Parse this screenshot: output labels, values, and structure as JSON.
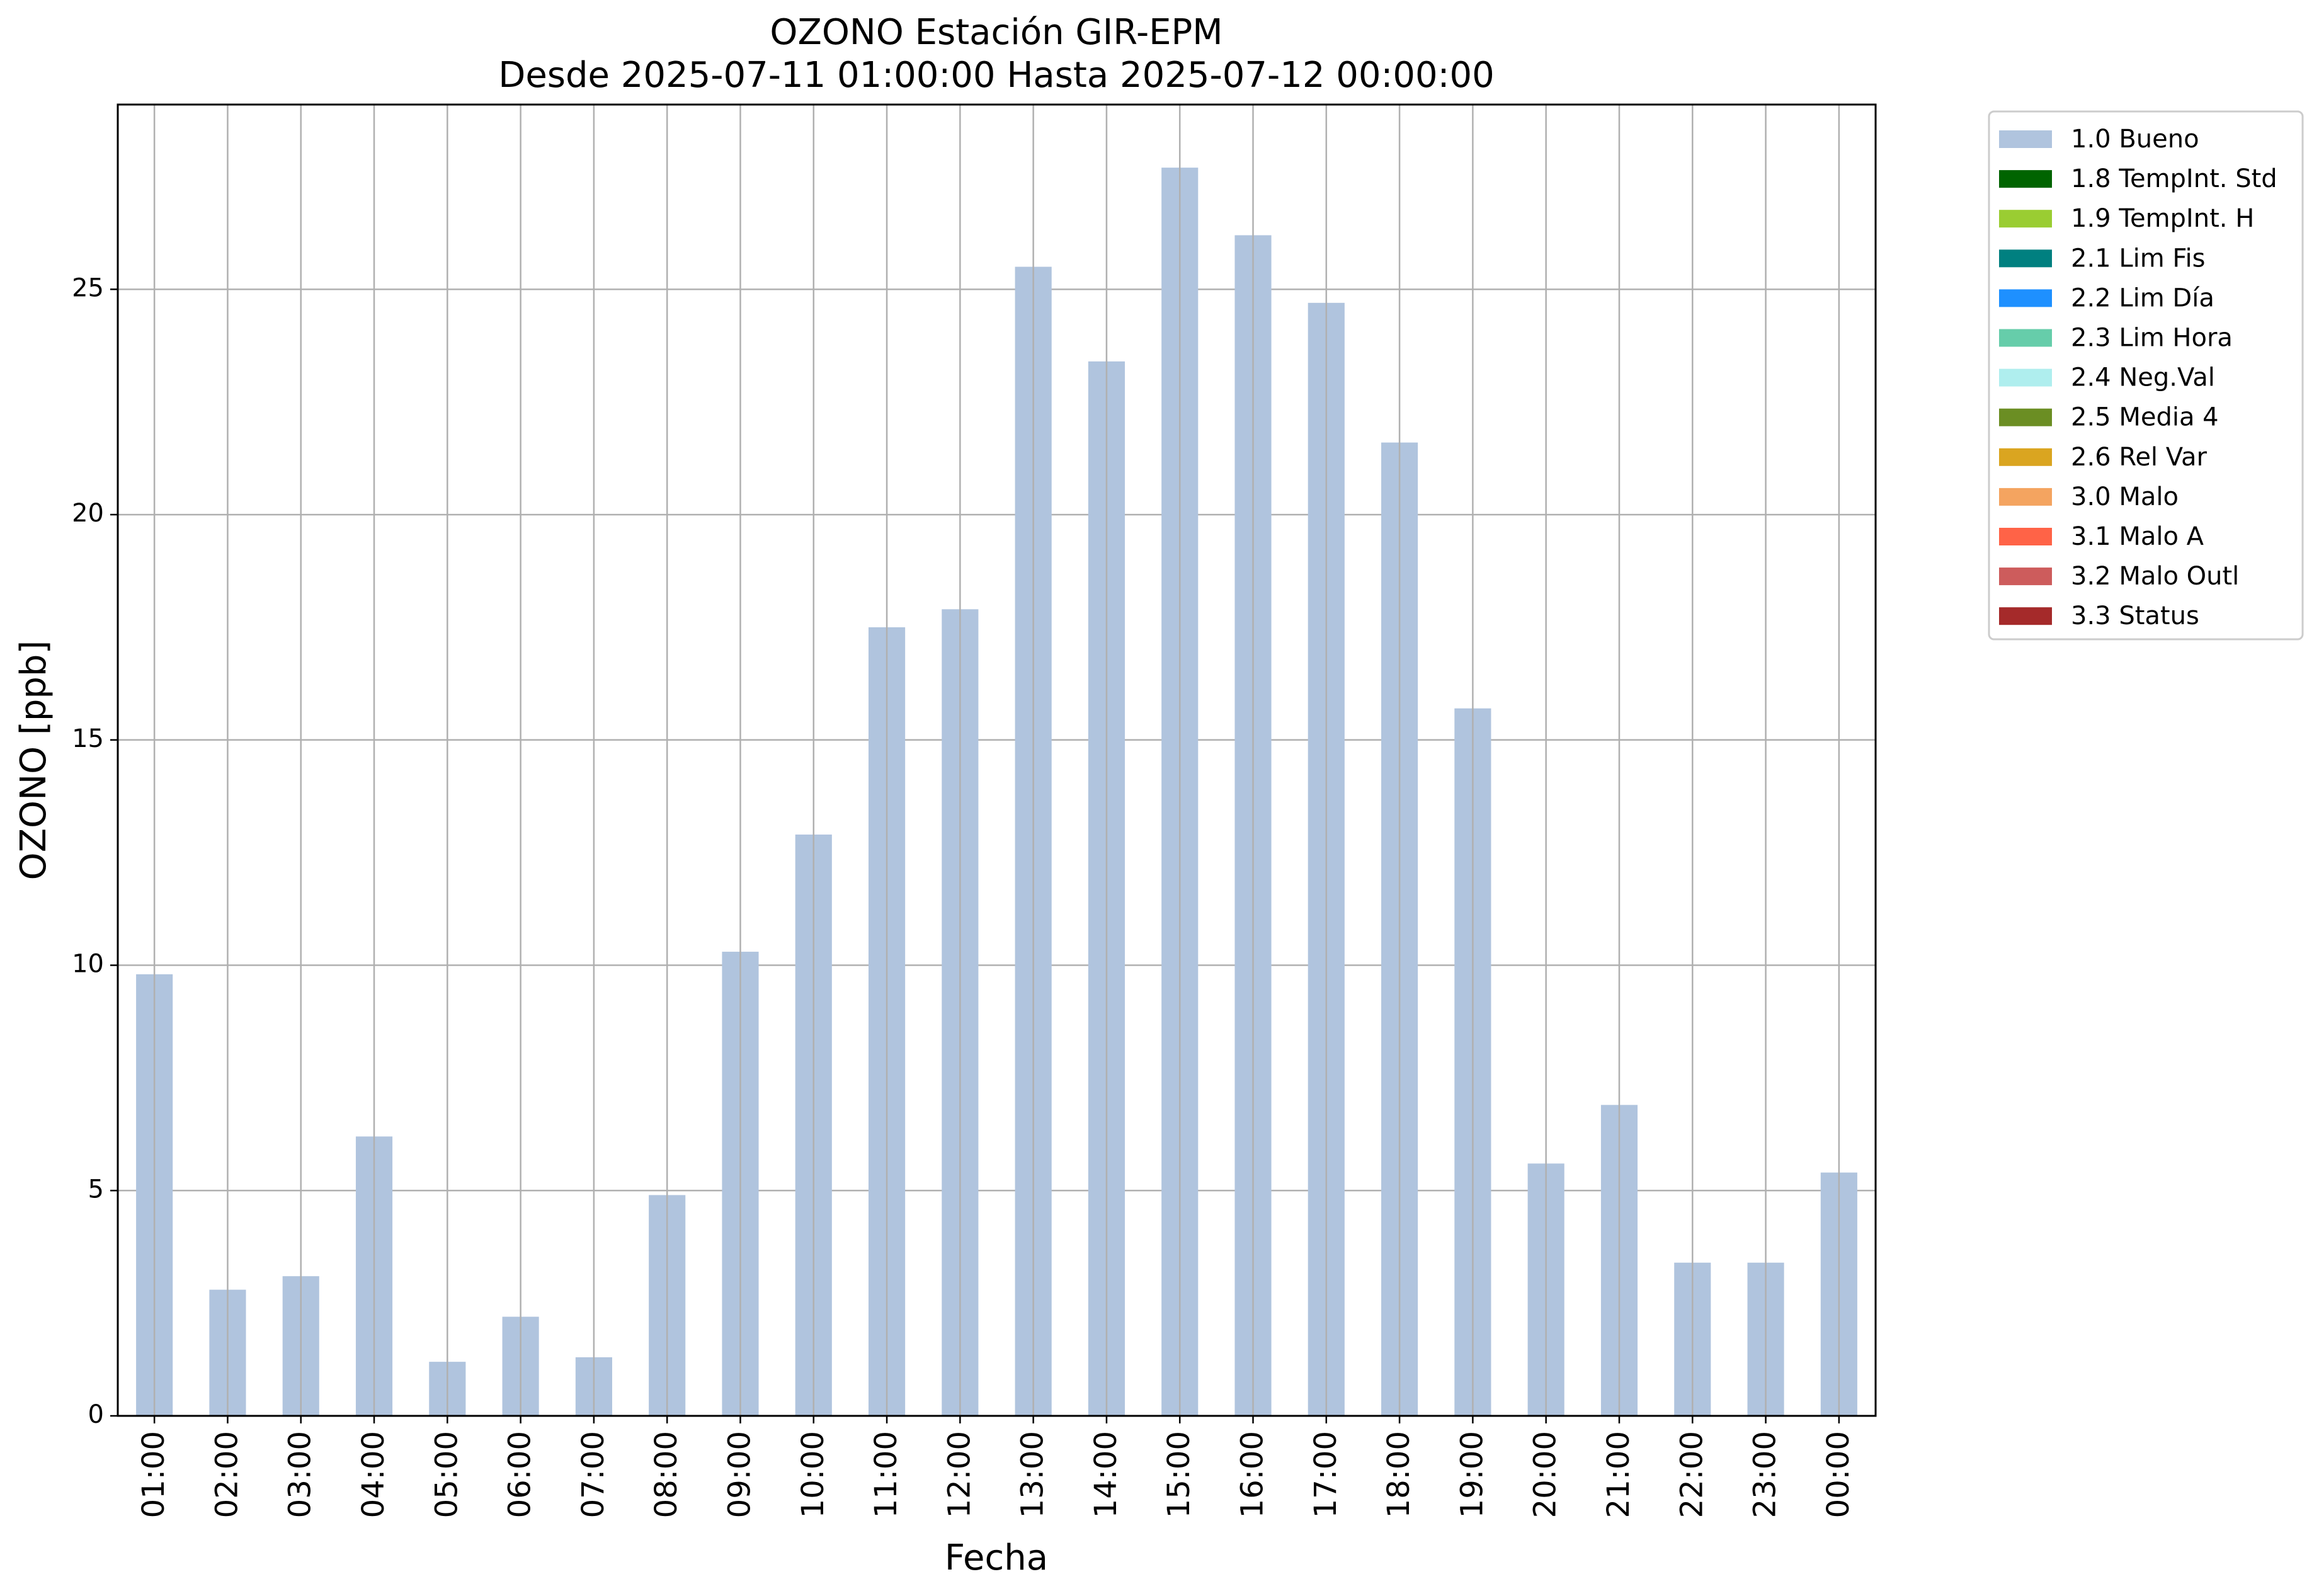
{
  "chart_data": {
    "type": "bar",
    "title": "OZONO Estación GIR-EPM",
    "subtitle": "Desde 2025-07-11 01:00:00 Hasta 2025-07-12 00:00:00",
    "xlabel": "Fecha",
    "ylabel": "OZONO [ppb]",
    "ylim": [
      0,
      29.1
    ],
    "yticks": [
      0,
      5,
      10,
      15,
      20,
      25
    ],
    "grid": true,
    "legend_position": "outside-top-right",
    "categories": [
      "01:00",
      "02:00",
      "03:00",
      "04:00",
      "05:00",
      "06:00",
      "07:00",
      "08:00",
      "09:00",
      "10:00",
      "11:00",
      "12:00",
      "13:00",
      "14:00",
      "15:00",
      "16:00",
      "17:00",
      "18:00",
      "19:00",
      "20:00",
      "21:00",
      "22:00",
      "23:00",
      "00:00"
    ],
    "series": [
      {
        "name": "1.0 Bueno",
        "color": "#b0c4de",
        "values": [
          9.8,
          2.8,
          3.1,
          6.2,
          1.2,
          2.2,
          1.3,
          4.9,
          10.3,
          12.9,
          17.5,
          17.9,
          25.5,
          23.4,
          27.7,
          26.2,
          24.7,
          21.6,
          15.7,
          5.6,
          6.9,
          3.4,
          3.4,
          5.4
        ]
      }
    ],
    "legend": [
      {
        "label": "1.0 Bueno",
        "color": "#b0c4de"
      },
      {
        "label": "1.8 TempInt. Std",
        "color": "#006400"
      },
      {
        "label": "1.9 TempInt. H",
        "color": "#9acd32"
      },
      {
        "label": "2.1 Lim Fis",
        "color": "#008080"
      },
      {
        "label": "2.2 Lim Día",
        "color": "#1e90ff"
      },
      {
        "label": "2.3 Lim Hora",
        "color": "#66cdaa"
      },
      {
        "label": "2.4 Neg.Val",
        "color": "#afeeee"
      },
      {
        "label": "2.5 Media 4",
        "color": "#6b8e23"
      },
      {
        "label": "2.6 Rel Var",
        "color": "#daa520"
      },
      {
        "label": "3.0 Malo",
        "color": "#f4a460"
      },
      {
        "label": "3.1 Malo A",
        "color": "#ff6347"
      },
      {
        "label": "3.2 Malo Outl",
        "color": "#cd5c5c"
      },
      {
        "label": "3.3 Status",
        "color": "#a52a2a"
      }
    ]
  }
}
